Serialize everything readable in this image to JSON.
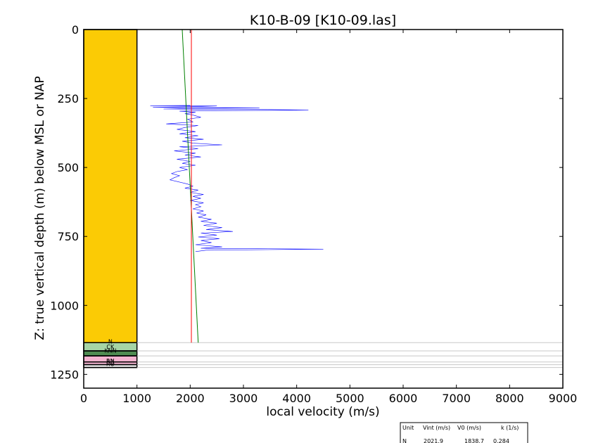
{
  "chart_data": {
    "type": "line",
    "title": "K10-B-09 [K10-09.las]",
    "xlabel": "local velocity (m/s)",
    "ylabel": "Z: true vertical depth (m) below MSL or NAP",
    "xlim": [
      0,
      9000
    ],
    "ylim": [
      1300,
      0
    ],
    "y_inverted": true,
    "grid": false,
    "x_ticks": [
      "0",
      "1000",
      "2000",
      "3000",
      "4000",
      "5000",
      "6000",
      "7000",
      "8000",
      "9000"
    ],
    "y_ticks": [
      "0",
      "250",
      "500",
      "750",
      "1000",
      "1250"
    ],
    "lithology_column": {
      "x_range": [
        0,
        1000
      ],
      "units": [
        {
          "name": "",
          "top": 0,
          "base": 1135,
          "color": "#fbcb05"
        },
        {
          "name": "N",
          "top": 1135,
          "base": 1135,
          "color": "#fbcb05"
        },
        {
          "name": "CK",
          "top": 1135,
          "base": 1165,
          "color": "#a6d5a6"
        },
        {
          "name": "KNN",
          "top": 1165,
          "base": 1183,
          "color": "#4f8c52"
        },
        {
          "name": "RN",
          "top": 1183,
          "base": 1205,
          "color": "#f3b3d0"
        },
        {
          "name": "RB",
          "top": 1205,
          "base": 1215,
          "color": "#f3b3d0"
        },
        {
          "name": "RO",
          "top": 1215,
          "base": 1225,
          "color": "#ffffff"
        }
      ]
    },
    "boundaries_depth": [
      1135,
      1165,
      1183,
      1205,
      1215,
      1225
    ],
    "series": [
      {
        "color": "#0000ff",
        "points": [
          [
            2000,
            275
          ],
          [
            1250,
            276
          ],
          [
            2500,
            277
          ],
          [
            2000,
            280
          ],
          [
            1300,
            282
          ],
          [
            3300,
            284
          ],
          [
            2000,
            286
          ],
          [
            1500,
            288
          ],
          [
            3500,
            290
          ],
          [
            4220,
            292
          ],
          [
            2500,
            294
          ],
          [
            1800,
            296
          ],
          [
            2100,
            300
          ],
          [
            1900,
            305
          ],
          [
            2050,
            310
          ],
          [
            2200,
            318
          ],
          [
            1950,
            325
          ],
          [
            2050,
            335
          ],
          [
            1550,
            342
          ],
          [
            2150,
            348
          ],
          [
            1900,
            355
          ],
          [
            1750,
            362
          ],
          [
            2100,
            370
          ],
          [
            1800,
            378
          ],
          [
            2150,
            385
          ],
          [
            1900,
            392
          ],
          [
            2250,
            398
          ],
          [
            1850,
            405
          ],
          [
            2050,
            412
          ],
          [
            2600,
            418
          ],
          [
            1800,
            425
          ],
          [
            2150,
            432
          ],
          [
            1700,
            440
          ],
          [
            2100,
            448
          ],
          [
            1900,
            455
          ],
          [
            2200,
            462
          ],
          [
            1750,
            470
          ],
          [
            2000,
            478
          ],
          [
            1850,
            485
          ],
          [
            2100,
            492
          ],
          [
            1800,
            500
          ],
          [
            1950,
            508
          ],
          [
            1750,
            515
          ],
          [
            1650,
            522
          ],
          [
            1800,
            530
          ],
          [
            1700,
            537
          ],
          [
            1620,
            545
          ],
          [
            1780,
            552
          ],
          [
            1950,
            560
          ],
          [
            2050,
            568
          ],
          [
            1900,
            575
          ],
          [
            2150,
            582
          ],
          [
            2000,
            590
          ],
          [
            2250,
            598
          ],
          [
            2050,
            605
          ],
          [
            2200,
            612
          ],
          [
            2000,
            620
          ],
          [
            2250,
            628
          ],
          [
            2100,
            635
          ],
          [
            2200,
            642
          ],
          [
            2050,
            650
          ],
          [
            2250,
            658
          ],
          [
            2120,
            665
          ],
          [
            2300,
            672
          ],
          [
            2150,
            680
          ],
          [
            2400,
            688
          ],
          [
            2200,
            695
          ],
          [
            2500,
            702
          ],
          [
            2250,
            710
          ],
          [
            2600,
            718
          ],
          [
            2300,
            725
          ],
          [
            2800,
            732
          ],
          [
            2200,
            738
          ],
          [
            2500,
            745
          ],
          [
            2150,
            752
          ],
          [
            2550,
            758
          ],
          [
            2200,
            765
          ],
          [
            2400,
            772
          ],
          [
            2100,
            780
          ],
          [
            2600,
            788
          ],
          [
            2200,
            793
          ],
          [
            4500,
            796
          ],
          [
            2300,
            800
          ],
          [
            2100,
            805
          ]
        ]
      },
      {
        "color": "#008000",
        "points": [
          [
            1850,
            0
          ],
          [
            2150,
            1135
          ]
        ]
      },
      {
        "color": "#ff0000",
        "points": [
          [
            2021.9,
            0
          ],
          [
            2021.9,
            1135
          ]
        ]
      }
    ],
    "table_legend": {
      "headers": [
        "Unit",
        "Vint (m/s)",
        "V0 (m/s)",
        "k (1/s)"
      ],
      "rows": [
        [
          "N",
          "2021.9",
          "1838.7",
          "0.284"
        ]
      ]
    }
  }
}
